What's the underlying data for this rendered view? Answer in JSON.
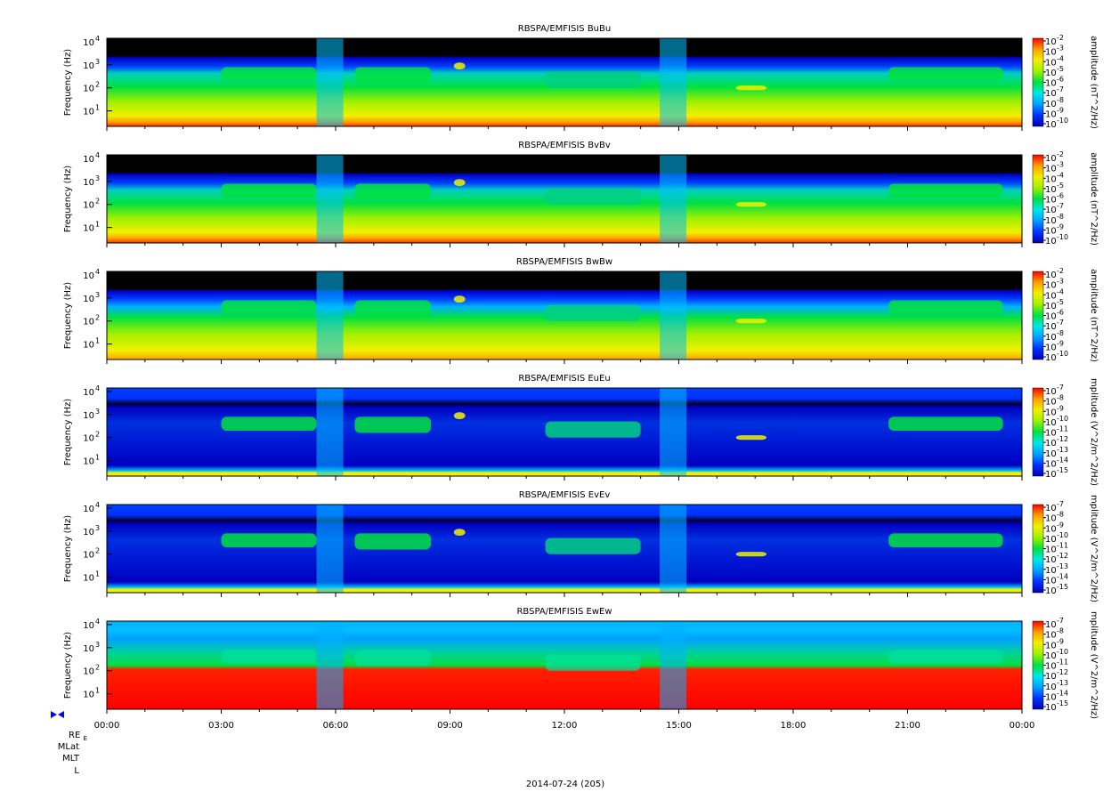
{
  "figure": {
    "date_label": "2014-07-24 (205)",
    "ephemeris_labels": [
      "RE",
      "MLat",
      "MLT",
      "L"
    ],
    "ephemeris_sub": "E",
    "marker_icon": "bowtie-marker-icon"
  },
  "chart_data": [
    {
      "type": "heatmap",
      "title": "RBSPA/EMFISIS  BuBu",
      "ylabel": "Frequency (Hz)",
      "y_scale": "log",
      "y_ticks": [
        "10",
        "10",
        "10",
        "10"
      ],
      "y_exponents": [
        "1",
        "2",
        "3",
        "4"
      ],
      "colorbar": {
        "label": "amplitude (nT^2/Hz)",
        "scale": "log",
        "exponents": [
          "-2",
          "-3",
          "-4",
          "-5",
          "-6",
          "-7",
          "-8",
          "-9",
          "-10"
        ]
      },
      "kind": "B"
    },
    {
      "type": "heatmap",
      "title": "RBSPA/EMFISIS  BvBv",
      "ylabel": "Frequency (Hz)",
      "y_scale": "log",
      "y_ticks": [
        "10",
        "10",
        "10",
        "10"
      ],
      "y_exponents": [
        "1",
        "2",
        "3",
        "4"
      ],
      "colorbar": {
        "label": "amplitude (nT^2/Hz)",
        "scale": "log",
        "exponents": [
          "-2",
          "-3",
          "-4",
          "-5",
          "-6",
          "-7",
          "-8",
          "-9",
          "-10"
        ]
      },
      "kind": "B"
    },
    {
      "type": "heatmap",
      "title": "RBSPA/EMFISIS  BwBw",
      "ylabel": "Frequency (Hz)",
      "y_scale": "log",
      "y_ticks": [
        "10",
        "10",
        "10",
        "10"
      ],
      "y_exponents": [
        "1",
        "2",
        "3",
        "4"
      ],
      "colorbar": {
        "label": "amplitude (nT^2/Hz)",
        "scale": "log",
        "exponents": [
          "-2",
          "-3",
          "-4",
          "-5",
          "-6",
          "-7",
          "-8",
          "-9",
          "-10"
        ]
      },
      "kind": "Bw"
    },
    {
      "type": "heatmap",
      "title": "RBSPA/EMFISIS  EuEu",
      "ylabel": "Frequency (Hz)",
      "y_scale": "log",
      "y_ticks": [
        "10",
        "10",
        "10",
        "10"
      ],
      "y_exponents": [
        "1",
        "2",
        "3",
        "4"
      ],
      "colorbar": {
        "label": "mplitude (V^2/m^2/Hz)",
        "scale": "log",
        "exponents": [
          "-7",
          "-8",
          "-9",
          "-10",
          "-11",
          "-12",
          "-13",
          "-14",
          "-15"
        ]
      },
      "kind": "E"
    },
    {
      "type": "heatmap",
      "title": "RBSPA/EMFISIS  EvEv",
      "ylabel": "Frequency (Hz)",
      "y_scale": "log",
      "y_ticks": [
        "10",
        "10",
        "10",
        "10"
      ],
      "y_exponents": [
        "1",
        "2",
        "3",
        "4"
      ],
      "colorbar": {
        "label": "mplitude (V^2/m^2/Hz)",
        "scale": "log",
        "exponents": [
          "-7",
          "-8",
          "-9",
          "-10",
          "-11",
          "-12",
          "-13",
          "-14",
          "-15"
        ]
      },
      "kind": "E"
    },
    {
      "type": "heatmap",
      "title": "RBSPA/EMFISIS  EwEw",
      "ylabel": "Frequency (Hz)",
      "y_scale": "log",
      "y_ticks": [
        "10",
        "10",
        "10",
        "10"
      ],
      "y_exponents": [
        "1",
        "2",
        "3",
        "4"
      ],
      "colorbar": {
        "label": "mplitude (V^2/m^2/Hz)",
        "scale": "log",
        "exponents": [
          "-7",
          "-8",
          "-9",
          "-10",
          "-11",
          "-12",
          "-13",
          "-14",
          "-15"
        ]
      },
      "kind": "Ew"
    }
  ],
  "x_axis": {
    "ticks": [
      "00:00",
      "03:00",
      "06:00",
      "09:00",
      "12:00",
      "15:00",
      "18:00",
      "21:00",
      "00:00"
    ],
    "range_hours": [
      0,
      24
    ]
  },
  "colors": {
    "colormap": [
      "#0000b4",
      "#0030ff",
      "#00a0ff",
      "#00e8e8",
      "#00e040",
      "#a0f000",
      "#f0f000",
      "#ffa000",
      "#ff0000"
    ],
    "background_dark": "#000000"
  }
}
